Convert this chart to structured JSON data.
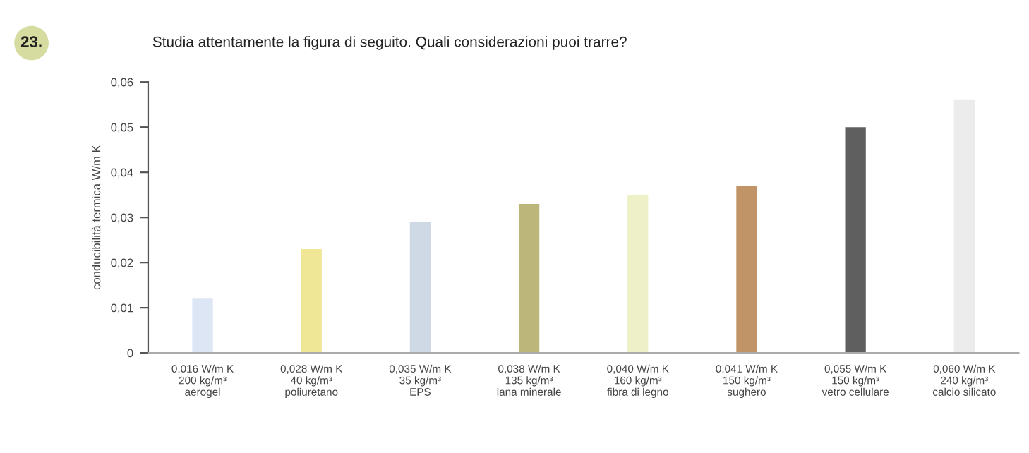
{
  "chart_data": {
    "type": "bar",
    "title": "Studia attentamente la figura di seguito. Quali considerazioni puoi trarre?",
    "annotations": [
      "23."
    ],
    "ylabel": "conducibilità termica W/m K",
    "categories": [
      "0,016 W/m K\n200 kg/m³\naerogel",
      "0,028 W/m K\n40 kg/m³\npoliuretano",
      "0,035 W/m K\n35 kg/m³\nEPS",
      "0,038 W/m K\n135 kg/m³\nlana minerale",
      "0,040 W/m K\n160 kg/m³\nfibra di legno",
      "0,041 W/m K\n150 kg/m³\nsughero",
      "0,055 W/m K\n150 kg/m³\nvetro cellulare",
      "0,060 W/m K\n240 kg/m³\ncalcio silicato"
    ],
    "values": [
      0.012,
      0.023,
      0.029,
      0.033,
      0.035,
      0.037,
      0.05,
      0.056
    ],
    "colors": [
      "#dce6f5",
      "#efe696",
      "#cfd9e6",
      "#bdb67a",
      "#eef0c8",
      "#c09466",
      "#5f5f5f",
      "#ececec"
    ],
    "ylim": [
      0,
      0.06
    ],
    "yticks": [
      0,
      {
        "value": 0.01,
        "label": "0,01"
      },
      {
        "value": 0.02,
        "label": "0,02"
      },
      {
        "value": 0.03,
        "label": "0,03"
      },
      {
        "value": 0.04,
        "label": "0,04"
      },
      {
        "value": 0.05,
        "label": "0,05"
      },
      {
        "value": 0.06,
        "label": "0,06"
      }
    ],
    "grid": false,
    "legend": false
  }
}
